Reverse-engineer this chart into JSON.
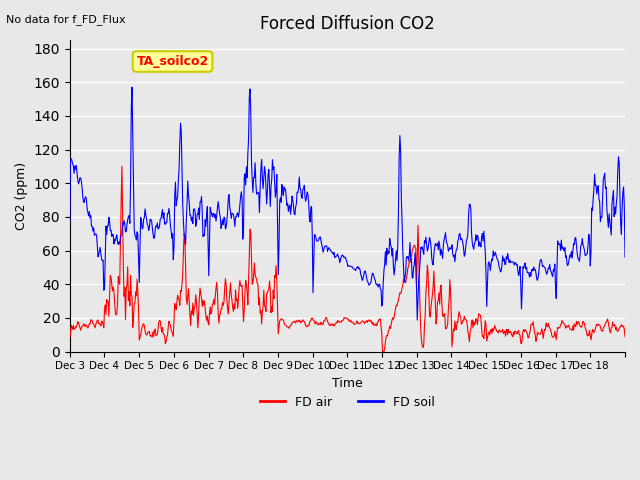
{
  "title": "Forced Diffusion CO2",
  "top_left_text": "No data for f_FD_Flux",
  "annotation_box": "TA_soilco2",
  "xlabel": "Time",
  "ylabel": "CO2 (ppm)",
  "ylim": [
    0,
    185
  ],
  "yticks": [
    0,
    20,
    40,
    60,
    80,
    100,
    120,
    140,
    160,
    180
  ],
  "legend_labels": [
    "FD air",
    "FD soil"
  ],
  "legend_colors": [
    "#ff0000",
    "#0000ff"
  ],
  "bg_color": "#e8e8e8",
  "plot_bg_color": "#e8e8e8",
  "grid_color": "#ffffff",
  "xtick_labels": [
    "Dec 3",
    "Dec 4",
    "Dec 5",
    "Dec 6",
    "Dec 7",
    "Dec 8",
    "Dec 9",
    "Dec 10",
    "Dec 11",
    "Dec 12",
    "Dec 13",
    "Dec 14",
    "Dec 15",
    "Dec 16",
    "Dec 17",
    "Dec 18"
  ],
  "n_days": 16,
  "start_day": 3,
  "red_color": "#ff0000",
  "blue_color": "#0000ff",
  "annotation_bg": "#ffff99",
  "annotation_border": "#cccc00"
}
